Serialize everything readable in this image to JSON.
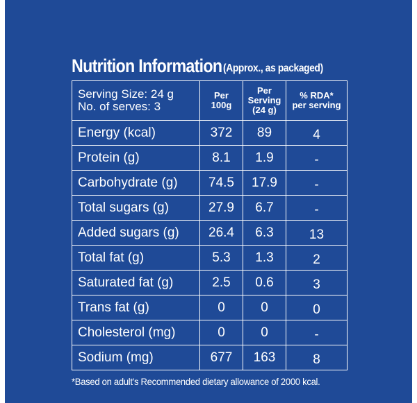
{
  "label": {
    "title": "Nutrition Information",
    "subtitle": "(Approx., as packaged)",
    "serving_size": "Serving Size: 24 g",
    "serves": "No. of serves: 3",
    "columns": {
      "per100_line1": "Per",
      "per100_line2": "100g",
      "serving_line1": "Per Serving",
      "serving_line2": "(24 g)",
      "rda_line1": "% RDA*",
      "rda_line2": "per serving"
    },
    "rows": [
      {
        "name": "Energy (kcal)",
        "per100": "372",
        "serving": "89",
        "rda": "4"
      },
      {
        "name": "Protein (g)",
        "per100": "8.1",
        "serving": "1.9",
        "rda": "-"
      },
      {
        "name": "Carbohydrate (g)",
        "per100": "74.5",
        "serving": "17.9",
        "rda": "-"
      },
      {
        "name": "Total sugars (g)",
        "per100": "27.9",
        "serving": "6.7",
        "rda": "-"
      },
      {
        "name": "Added sugars (g)",
        "per100": "26.4",
        "serving": "6.3",
        "rda": "13"
      },
      {
        "name": "Total fat (g)",
        "per100": "5.3",
        "serving": "1.3",
        "rda": "2"
      },
      {
        "name": "Saturated fat (g)",
        "per100": "2.5",
        "serving": "0.6",
        "rda": "3"
      },
      {
        "name": "Trans fat (g)",
        "per100": "0",
        "serving": "0",
        "rda": "0"
      },
      {
        "name": "Cholesterol (mg)",
        "per100": "0",
        "serving": "0",
        "rda": "-"
      },
      {
        "name": "Sodium (mg)",
        "per100": "677",
        "serving": "163",
        "rda": "8"
      }
    ],
    "footnote": "*Based on adult's Recommended dietary allowance of 2000 kcal."
  },
  "colors": {
    "background": "#1f4a97",
    "text": "#ffffff"
  }
}
